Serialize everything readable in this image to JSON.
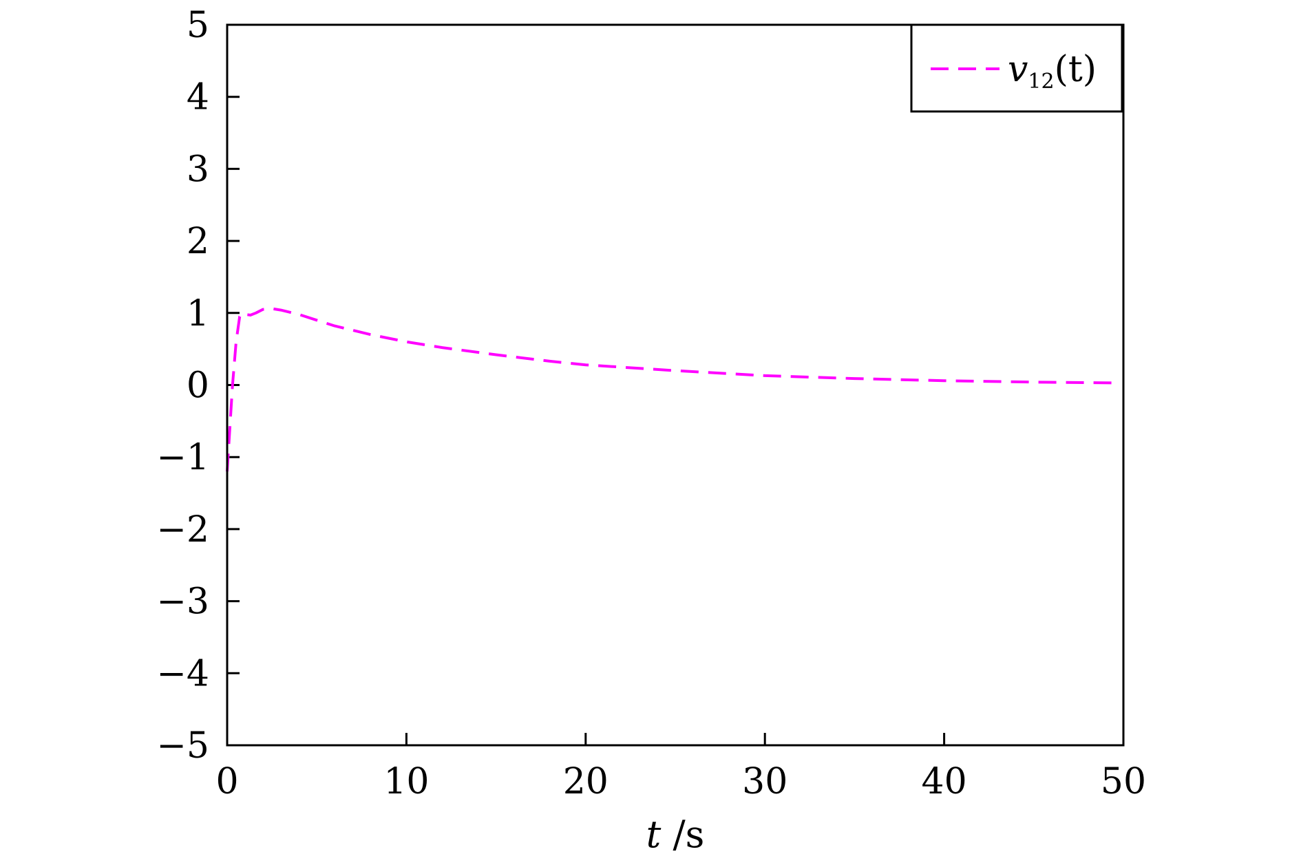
{
  "chart_data": {
    "type": "line",
    "xlabel_var": "t",
    "xlabel_unit": " /s",
    "ylabel": "",
    "xlim": [
      0,
      50
    ],
    "ylim": [
      -5,
      5
    ],
    "x_ticks": [
      0,
      10,
      20,
      30,
      40,
      50
    ],
    "y_ticks": [
      -5,
      -4,
      -3,
      -2,
      -1,
      0,
      1,
      2,
      3,
      4,
      5
    ],
    "y_tick_labels": [
      "−5",
      "−4",
      "−3",
      "−2",
      "−1",
      "0",
      "1",
      "2",
      "3",
      "4",
      "5"
    ],
    "legend_position": "top-right",
    "series": [
      {
        "name_base": "v",
        "name_sub": "12",
        "name_suffix": "(t)",
        "color": "#ff00ff",
        "dash": "dashed",
        "x": [
          0,
          0.15,
          0.3,
          0.5,
          0.7,
          0.9,
          1.0,
          1.3,
          1.6,
          2.0,
          2.5,
          3,
          4,
          5,
          6,
          8,
          10,
          12,
          15,
          18,
          20,
          25,
          30,
          35,
          40,
          45,
          49.5
        ],
        "y": [
          -1.2,
          -0.6,
          0.0,
          0.6,
          0.95,
          1.0,
          0.98,
          0.97,
          1.0,
          1.05,
          1.06,
          1.04,
          0.98,
          0.9,
          0.82,
          0.7,
          0.6,
          0.52,
          0.42,
          0.33,
          0.28,
          0.2,
          0.13,
          0.09,
          0.06,
          0.04,
          0.03
        ]
      }
    ]
  }
}
